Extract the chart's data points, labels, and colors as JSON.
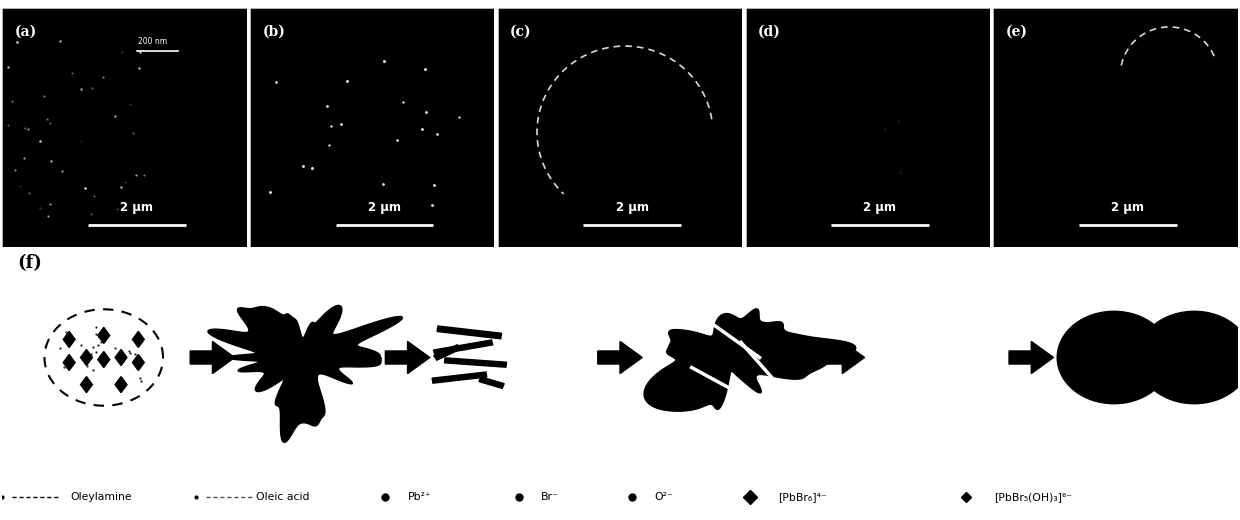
{
  "panel_labels": [
    "(a)",
    "(b)",
    "(c)",
    "(d)",
    "(e)",
    "(f)"
  ],
  "scale_bar_text": "2 μm",
  "scale_bar_200nm": "200 nm",
  "background_color": "#000000",
  "white_color": "#ffffff",
  "legend_labels": [
    "Oleylamine",
    "Oleic acid",
    "Pb²⁺",
    "Br⁻",
    "O²⁻",
    "[PbBr₆]⁴⁻",
    "[PbBr₅(OH)₃]⁶⁻"
  ],
  "fig_width": 12.4,
  "fig_height": 5.2
}
